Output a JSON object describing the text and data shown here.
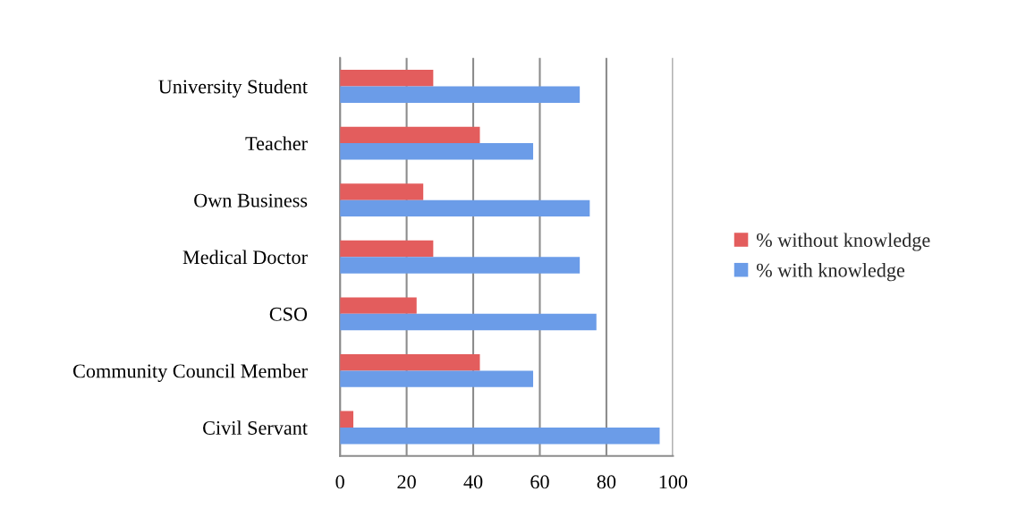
{
  "chart_data": {
    "type": "bar",
    "orientation": "horizontal",
    "categories": [
      "University Student",
      "Teacher",
      "Own Business",
      "Medical Doctor",
      "CSO",
      "Community Council Member",
      "Civil Servant"
    ],
    "series": [
      {
        "name": "% without knowledge",
        "color": "#e35d5d",
        "values": [
          28,
          42,
          25,
          28,
          23,
          42,
          4
        ]
      },
      {
        "name": "% with knowledge",
        "color": "#6b9ce8",
        "values": [
          72,
          58,
          75,
          72,
          77,
          58,
          96
        ]
      }
    ],
    "xlim": [
      0,
      100
    ],
    "xticks": [
      0,
      20,
      40,
      60,
      80,
      100
    ],
    "grid": "x",
    "legend": "right"
  }
}
